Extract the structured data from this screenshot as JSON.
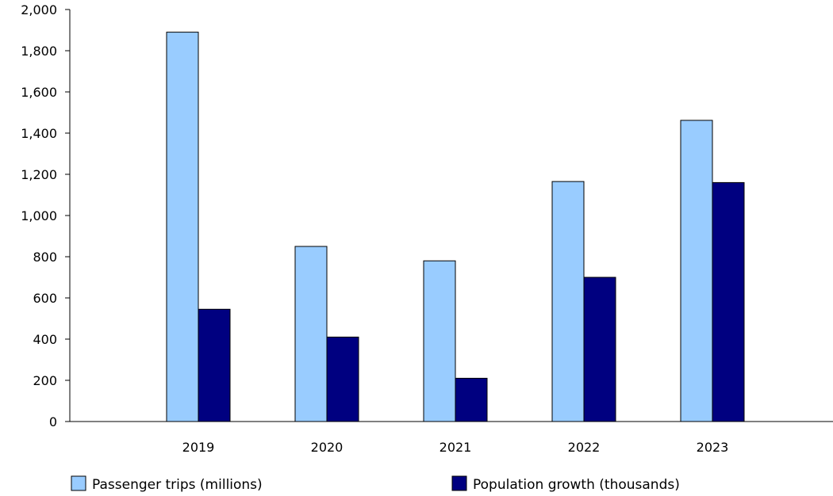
{
  "chart_data": {
    "type": "bar",
    "title": "",
    "xlabel": "",
    "ylabel": "",
    "categories": [
      "2019",
      "2020",
      "2021",
      "2022",
      "2023"
    ],
    "series": [
      {
        "name": "Passenger trips (millions)",
        "values": [
          1890,
          850,
          780,
          1165,
          1462
        ],
        "color": "#99ccff"
      },
      {
        "name": "Population growth (thousands)",
        "values": [
          545,
          410,
          210,
          700,
          1160
        ],
        "color": "#000080"
      }
    ],
    "ylim": [
      0,
      2000
    ],
    "yticks": [
      "0",
      "200",
      "400",
      "600",
      "800",
      "1,000",
      "1,200",
      "1,400",
      "1,600",
      "1,800",
      "2,000"
    ],
    "grid": false,
    "legend_position": "bottom"
  }
}
